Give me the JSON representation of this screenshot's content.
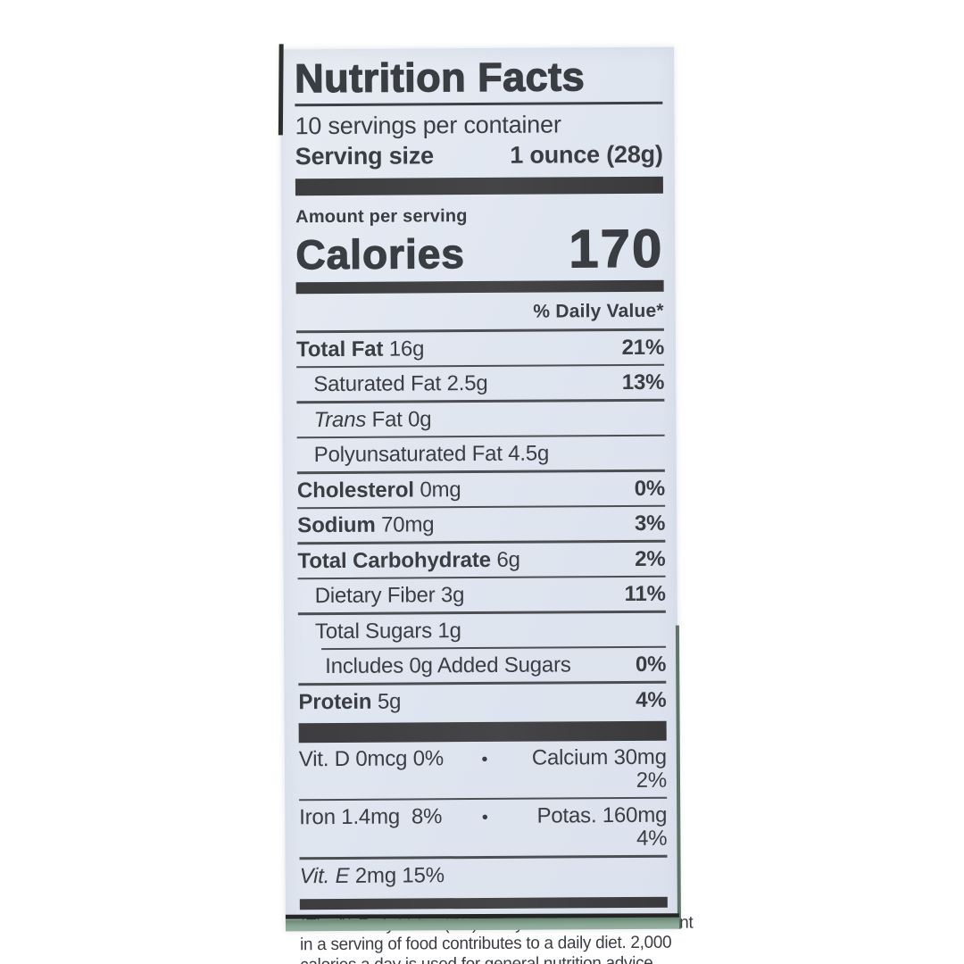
{
  "label": {
    "title": "Nutrition Facts",
    "servings_per_container": "10 servings per container",
    "serving_size": {
      "label": "Serving size",
      "value": "1 ounce (28g)"
    },
    "amount_per_serving": "Amount per serving",
    "calories": {
      "label": "Calories",
      "value": "170"
    },
    "daily_value_header": "% Daily Value*",
    "rows": [
      {
        "bold": "Total Fat",
        "text": " 16g",
        "dv": "21%"
      },
      {
        "text": "Saturated Fat 2.5g",
        "dv": "13%"
      },
      {
        "italic": "Trans",
        "text": " Fat 0g"
      },
      {
        "text": "Polyunsaturated Fat 4.5g"
      },
      {
        "bold": "Cholesterol",
        "text": " 0mg",
        "dv": "0%"
      },
      {
        "bold": "Sodium",
        "text": " 70mg",
        "dv": "3%"
      },
      {
        "bold": "Total Carbohydrate",
        "text": " 6g",
        "dv": "2%"
      },
      {
        "text": "Dietary Fiber 3g",
        "dv": "11%"
      },
      {
        "text": "Total Sugars 1g"
      },
      {
        "text": "Includes 0g Added Sugars",
        "dv": "0%"
      },
      {
        "bold": "Protein",
        "text": " 5g",
        "dv": "4%"
      }
    ],
    "micronutrients": [
      {
        "left": "Vit. D 0mcg 0%",
        "sep": "•",
        "right": "Calcium 30mg 2%"
      },
      {
        "left": "Iron 1.4mg  8%",
        "sep": "•",
        "right": "Potas. 160mg 4%"
      },
      {
        "left_italic": "Vit. E",
        "left_rest": " 2mg 15%"
      }
    ],
    "footnote_lines": [
      "*The % Daily Value (DV) tells you how much a nutrient",
      "in a serving of food contributes to a daily diet. 2,000",
      "calories a day is used for general nutrition advice."
    ],
    "colors": {
      "paper": "#e2e7f0",
      "ink": "#3a3d42",
      "bar": "#3d3d3f",
      "package_strip": "#8aa795"
    }
  }
}
